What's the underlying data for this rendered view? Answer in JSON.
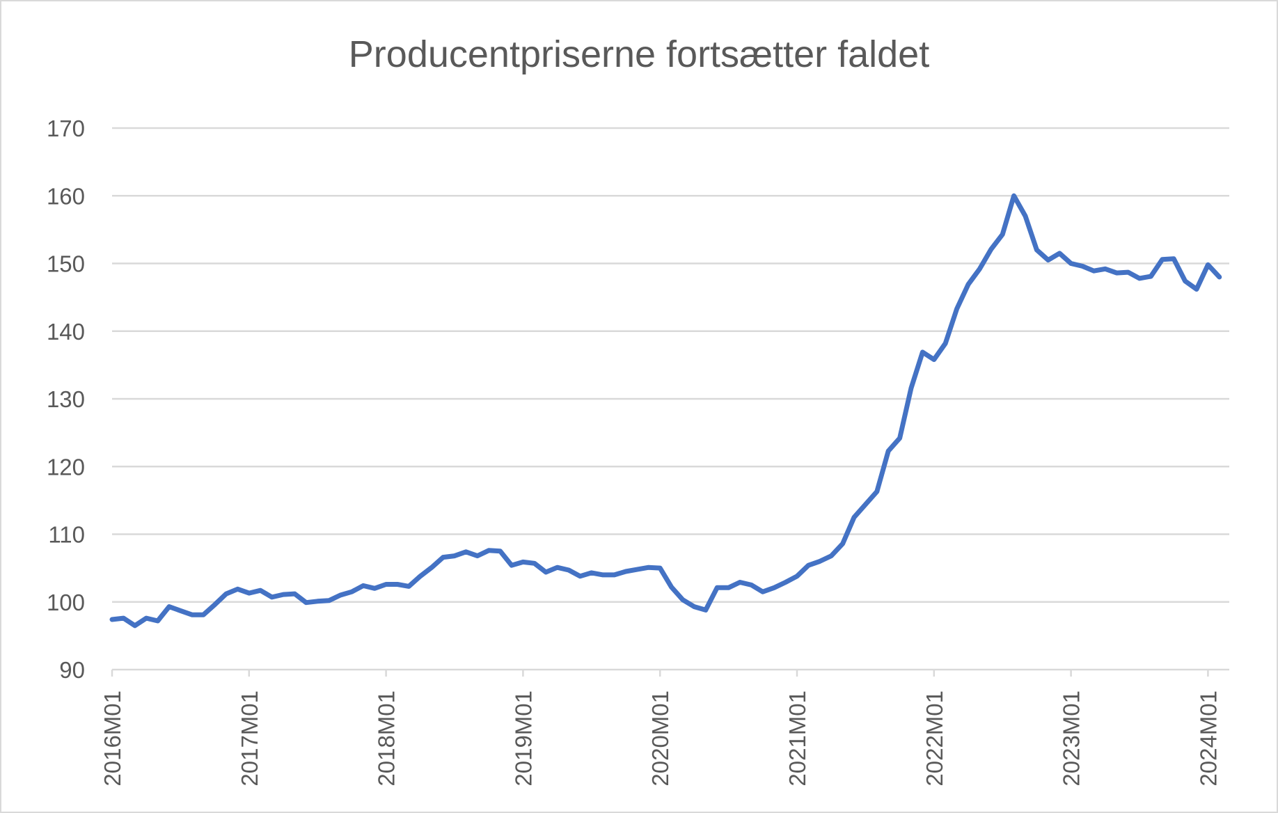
{
  "chart_data": {
    "type": "line",
    "title": "Producentpriserne fortsætter faldet",
    "xlabel": "",
    "ylabel": "",
    "ylim": [
      90,
      170
    ],
    "yticks": [
      90,
      100,
      110,
      120,
      130,
      140,
      150,
      160,
      170
    ],
    "grid": true,
    "legend": "none",
    "x_tick_labels": [
      "2016M01",
      "2017M01",
      "2018M01",
      "2019M01",
      "2020M01",
      "2021M01",
      "2022M01",
      "2023M01",
      "2024M01"
    ],
    "x": [
      "2016M01",
      "2016M02",
      "2016M03",
      "2016M04",
      "2016M05",
      "2016M06",
      "2016M07",
      "2016M08",
      "2016M09",
      "2016M10",
      "2016M11",
      "2016M12",
      "2017M01",
      "2017M02",
      "2017M03",
      "2017M04",
      "2017M05",
      "2017M06",
      "2017M07",
      "2017M08",
      "2017M09",
      "2017M10",
      "2017M11",
      "2017M12",
      "2018M01",
      "2018M02",
      "2018M03",
      "2018M04",
      "2018M05",
      "2018M06",
      "2018M07",
      "2018M08",
      "2018M09",
      "2018M10",
      "2018M11",
      "2018M12",
      "2019M01",
      "2019M02",
      "2019M03",
      "2019M04",
      "2019M05",
      "2019M06",
      "2019M07",
      "2019M08",
      "2019M09",
      "2019M10",
      "2019M11",
      "2019M12",
      "2020M01",
      "2020M02",
      "2020M03",
      "2020M04",
      "2020M05",
      "2020M06",
      "2020M07",
      "2020M08",
      "2020M09",
      "2020M10",
      "2020M11",
      "2020M12",
      "2021M01",
      "2021M02",
      "2021M03",
      "2021M04",
      "2021M05",
      "2021M06",
      "2021M07",
      "2021M08",
      "2021M09",
      "2021M10",
      "2021M11",
      "2021M12",
      "2022M01",
      "2022M02",
      "2022M03",
      "2022M04",
      "2022M05",
      "2022M06",
      "2022M07",
      "2022M08",
      "2022M09",
      "2022M10",
      "2022M11",
      "2022M12",
      "2023M01",
      "2023M02",
      "2023M03",
      "2023M04",
      "2023M05",
      "2023M06",
      "2023M07",
      "2023M08",
      "2023M09",
      "2023M10",
      "2023M11",
      "2023M12",
      "2024M01",
      "2024M02"
    ],
    "series": [
      {
        "color": "#4472C4",
        "values": [
          97.4,
          97.6,
          96.5,
          97.6,
          97.2,
          99.3,
          98.7,
          98.1,
          98.1,
          99.6,
          101.2,
          101.9,
          101.3,
          101.7,
          100.7,
          101.1,
          101.2,
          99.9,
          100.1,
          100.2,
          101.0,
          101.5,
          102.4,
          102.0,
          102.6,
          102.6,
          102.3,
          103.8,
          105.1,
          106.6,
          106.8,
          107.4,
          106.8,
          107.6,
          107.5,
          105.4,
          105.9,
          105.7,
          104.4,
          105.1,
          104.7,
          103.8,
          104.3,
          104.0,
          104.0,
          104.5,
          104.8,
          105.1,
          105.0,
          102.2,
          100.3,
          99.3,
          98.8,
          102.1,
          102.1,
          102.9,
          102.5,
          101.5,
          102.1,
          102.9,
          103.8,
          105.4,
          106.0,
          106.8,
          108.6,
          112.5,
          114.4,
          116.3,
          122.3,
          124.2,
          131.6,
          136.9,
          135.8,
          138.2,
          143.3,
          146.9,
          149.2,
          152.1,
          154.3,
          160.0,
          157.0,
          152.0,
          150.5,
          151.5,
          150.0,
          149.6,
          148.9,
          149.2,
          148.6,
          148.7,
          147.8,
          148.1,
          150.6,
          150.7,
          147.4,
          146.2,
          149.8,
          148.0
        ]
      }
    ]
  }
}
